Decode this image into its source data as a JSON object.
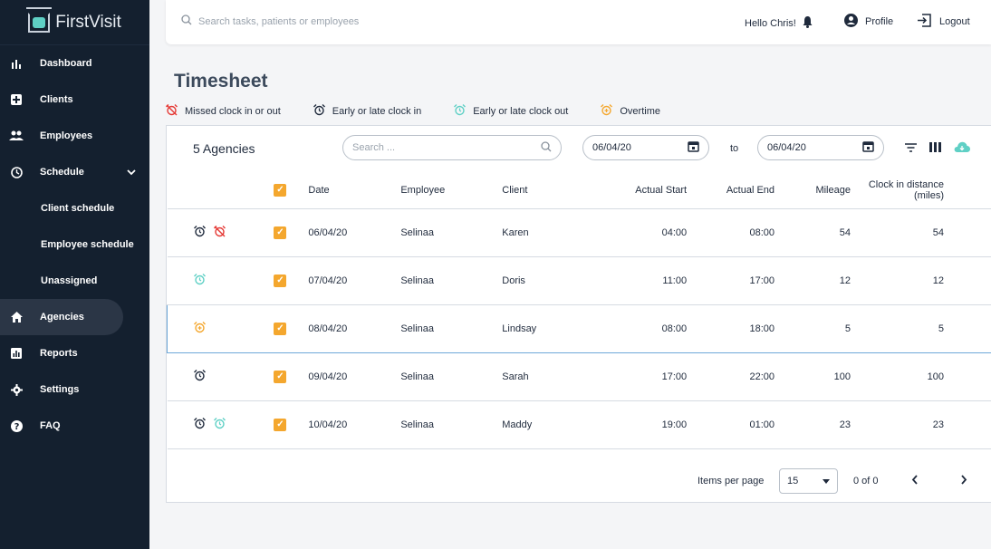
{
  "app": {
    "name": "FirstVisit"
  },
  "sidebar": {
    "items": [
      {
        "label": "Dashboard",
        "icon": "bar-chart-icon"
      },
      {
        "label": "Clients",
        "icon": "medical-plus-icon"
      },
      {
        "label": "Employees",
        "icon": "people-icon"
      },
      {
        "label": "Schedule",
        "icon": "clock-icon"
      },
      {
        "label": "Client schedule",
        "icon": ""
      },
      {
        "label": "Employee schedule",
        "icon": ""
      },
      {
        "label": "Unassigned",
        "icon": ""
      },
      {
        "label": "Agencies",
        "icon": "home-icon"
      },
      {
        "label": "Reports",
        "icon": "report-chart-icon"
      },
      {
        "label": "Settings",
        "icon": "gear-icon"
      },
      {
        "label": "FAQ",
        "icon": "help-icon"
      }
    ]
  },
  "topbar": {
    "search_placeholder": "Search tasks, patients or employees",
    "greeting": "Hello Chris!",
    "profile": "Profile",
    "logout": "Logout"
  },
  "page": {
    "title": "Timesheet"
  },
  "legend": [
    {
      "label": "Missed clock in or out",
      "color": "#e53935",
      "icon": "alarm-off-icon"
    },
    {
      "label": "Early or late clock in",
      "color": "#1f2a3c",
      "icon": "alarm-clock-icon"
    },
    {
      "label": "Early or late clock out",
      "color": "#5fd0c5",
      "icon": "alarm-clock-icon"
    },
    {
      "label": "Overtime",
      "color": "#f4a72e",
      "icon": "alarm-plus-icon"
    }
  ],
  "toolbar": {
    "count_label": "5 Agencies",
    "search_placeholder": "Search ...",
    "date_from": "06/04/20",
    "to": "to",
    "date_to": "06/04/20"
  },
  "table": {
    "columns": [
      "Date",
      "Employee",
      "Client",
      "Actual Start",
      "Actual End",
      "Mileage",
      "Clock in distance (miles)"
    ],
    "rows": [
      {
        "date": "06/04/20",
        "employee": "Selinaa",
        "client": "Karen",
        "start": "04:00",
        "end": "08:00",
        "mileage": "54",
        "distance": "54"
      },
      {
        "date": "07/04/20",
        "employee": "Selinaa",
        "client": "Doris",
        "start": "11:00",
        "end": "17:00",
        "mileage": "12",
        "distance": "12"
      },
      {
        "date": "08/04/20",
        "employee": "Selinaa",
        "client": "Lindsay",
        "start": "08:00",
        "end": "18:00",
        "mileage": "5",
        "distance": "5"
      },
      {
        "date": "09/04/20",
        "employee": "Selinaa",
        "client": "Sarah",
        "start": "17:00",
        "end": "22:00",
        "mileage": "100",
        "distance": "100"
      },
      {
        "date": "10/04/20",
        "employee": "Selinaa",
        "client": "Maddy",
        "start": "19:00",
        "end": "01:00",
        "mileage": "23",
        "distance": "23"
      }
    ]
  },
  "pagination": {
    "items_per_page_label": "Items per page",
    "items_per_page": "15",
    "range": "0 of 0"
  }
}
